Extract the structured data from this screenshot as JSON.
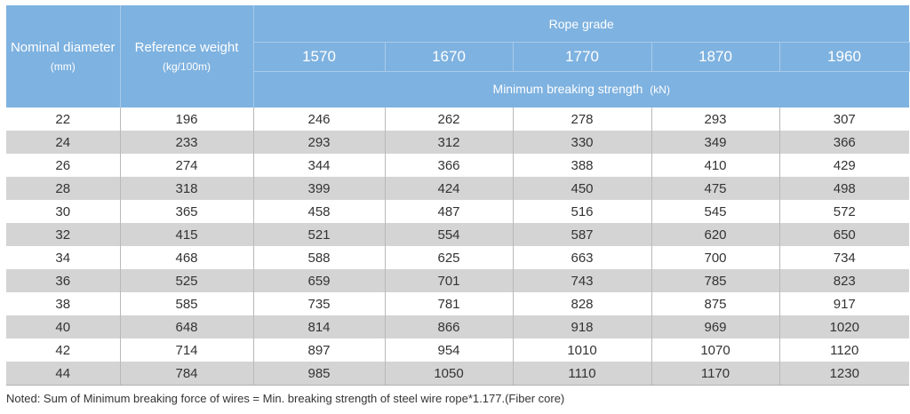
{
  "table": {
    "headers": {
      "nominal_diameter": "Nominal diameter",
      "nominal_diameter_unit": "(mm)",
      "reference_weight": "Reference weight",
      "reference_weight_unit": "(kg/100m)",
      "rope_grade": "Rope grade",
      "grades": [
        "1570",
        "1670",
        "1770",
        "1870",
        "1960"
      ],
      "min_breaking_strength": "Minimum breaking strength",
      "min_breaking_strength_unit": "(kN)"
    },
    "rows": [
      [
        "22",
        "196",
        "246",
        "262",
        "278",
        "293",
        "307"
      ],
      [
        "24",
        "233",
        "293",
        "312",
        "330",
        "349",
        "366"
      ],
      [
        "26",
        "274",
        "344",
        "366",
        "388",
        "410",
        "429"
      ],
      [
        "28",
        "318",
        "399",
        "424",
        "450",
        "475",
        "498"
      ],
      [
        "30",
        "365",
        "458",
        "487",
        "516",
        "545",
        "572"
      ],
      [
        "32",
        "415",
        "521",
        "554",
        "587",
        "620",
        "650"
      ],
      [
        "34",
        "468",
        "588",
        "625",
        "663",
        "700",
        "734"
      ],
      [
        "36",
        "525",
        "659",
        "701",
        "743",
        "785",
        "823"
      ],
      [
        "38",
        "585",
        "735",
        "781",
        "828",
        "875",
        "917"
      ],
      [
        "40",
        "648",
        "814",
        "866",
        "918",
        "969",
        "1020"
      ],
      [
        "42",
        "714",
        "897",
        "954",
        "1010",
        "1070",
        "1120"
      ],
      [
        "44",
        "784",
        "985",
        "1050",
        "1110",
        "1170",
        "1230"
      ]
    ]
  },
  "note": "Noted: Sum of Minimum breaking force of wires = Min. breaking strength of steel wire rope*1.177.(Fiber core)",
  "colors": {
    "header_bg": "#7eb2e0",
    "header_text": "#ffffff",
    "stripe": "#d4d4d4"
  }
}
